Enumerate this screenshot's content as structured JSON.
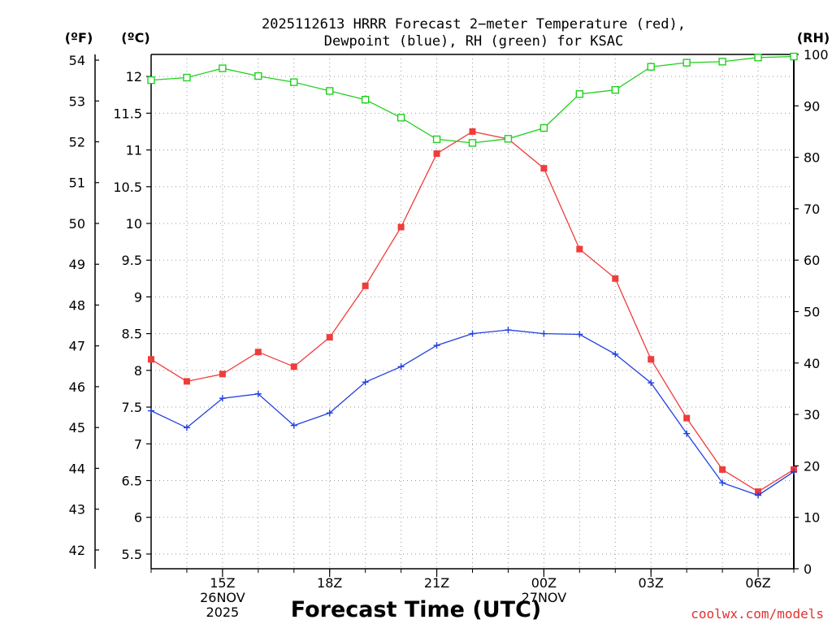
{
  "chart_data": {
    "type": "line",
    "title_line1": "2025112613 HRRR Forecast 2−meter Temperature (red),",
    "title_line2": "Dewpoint (blue), RH (green) for KSAC",
    "unit_f": "(ºF)",
    "unit_c": "(ºC)",
    "unit_rh": "(RH)",
    "xlabel": "Forecast Time (UTC)",
    "credit": "coolwx.com/models",
    "x_hours": [
      13,
      14,
      15,
      16,
      17,
      18,
      19,
      20,
      21,
      22,
      23,
      24,
      25,
      26,
      27,
      28,
      29,
      30,
      31
    ],
    "xlim": [
      13,
      31
    ],
    "x_ticks": [
      {
        "x": 15,
        "lines": [
          "15Z",
          "26NOV",
          "2025"
        ]
      },
      {
        "x": 18,
        "lines": [
          "18Z"
        ]
      },
      {
        "x": 21,
        "lines": [
          "21Z"
        ]
      },
      {
        "x": 24,
        "lines": [
          "00Z",
          "27NOV"
        ]
      },
      {
        "x": 27,
        "lines": [
          "03Z"
        ]
      },
      {
        "x": 30,
        "lines": [
          "06Z"
        ]
      }
    ],
    "celsius_axis": {
      "ylim": [
        5.3,
        12.3
      ],
      "ticks": [
        5.5,
        6,
        6.5,
        7,
        7.5,
        8,
        8.5,
        9,
        9.5,
        10,
        10.5,
        11,
        11.5,
        12
      ]
    },
    "fahrenheit_axis": {
      "ticks": [
        42,
        43,
        44,
        45,
        46,
        47,
        48,
        49,
        50,
        51,
        52,
        53,
        54
      ]
    },
    "rh_axis": {
      "ylim": [
        0,
        100
      ],
      "ticks": [
        0,
        10,
        20,
        30,
        40,
        50,
        60,
        70,
        80,
        90,
        100
      ]
    },
    "series": [
      {
        "name": "Temperature",
        "color": "#f03c3c",
        "marker": "filled-square",
        "axis": "celsius",
        "values": [
          8.15,
          7.85,
          7.95,
          8.25,
          8.05,
          8.45,
          9.15,
          9.95,
          10.95,
          11.25,
          11.15,
          10.75,
          9.65,
          9.25,
          8.15,
          7.35,
          6.65,
          6.35,
          6.65
        ]
      },
      {
        "name": "Dewpoint",
        "color": "#2040e0",
        "marker": "plus",
        "axis": "celsius",
        "values": [
          7.45,
          7.22,
          7.62,
          7.68,
          7.25,
          7.42,
          7.84,
          8.05,
          8.34,
          8.5,
          8.55,
          8.5,
          8.49,
          8.22,
          7.83,
          7.14,
          6.47,
          6.3,
          6.62
        ]
      },
      {
        "name": "RH",
        "color": "#20d020",
        "marker": "open-square",
        "axis": "rh",
        "values": [
          95.0,
          95.5,
          97.3,
          95.8,
          94.6,
          92.9,
          91.2,
          87.7,
          83.5,
          82.8,
          83.6,
          85.7,
          92.3,
          93.1,
          97.6,
          98.4,
          98.6,
          99.4,
          99.6
        ]
      }
    ]
  }
}
